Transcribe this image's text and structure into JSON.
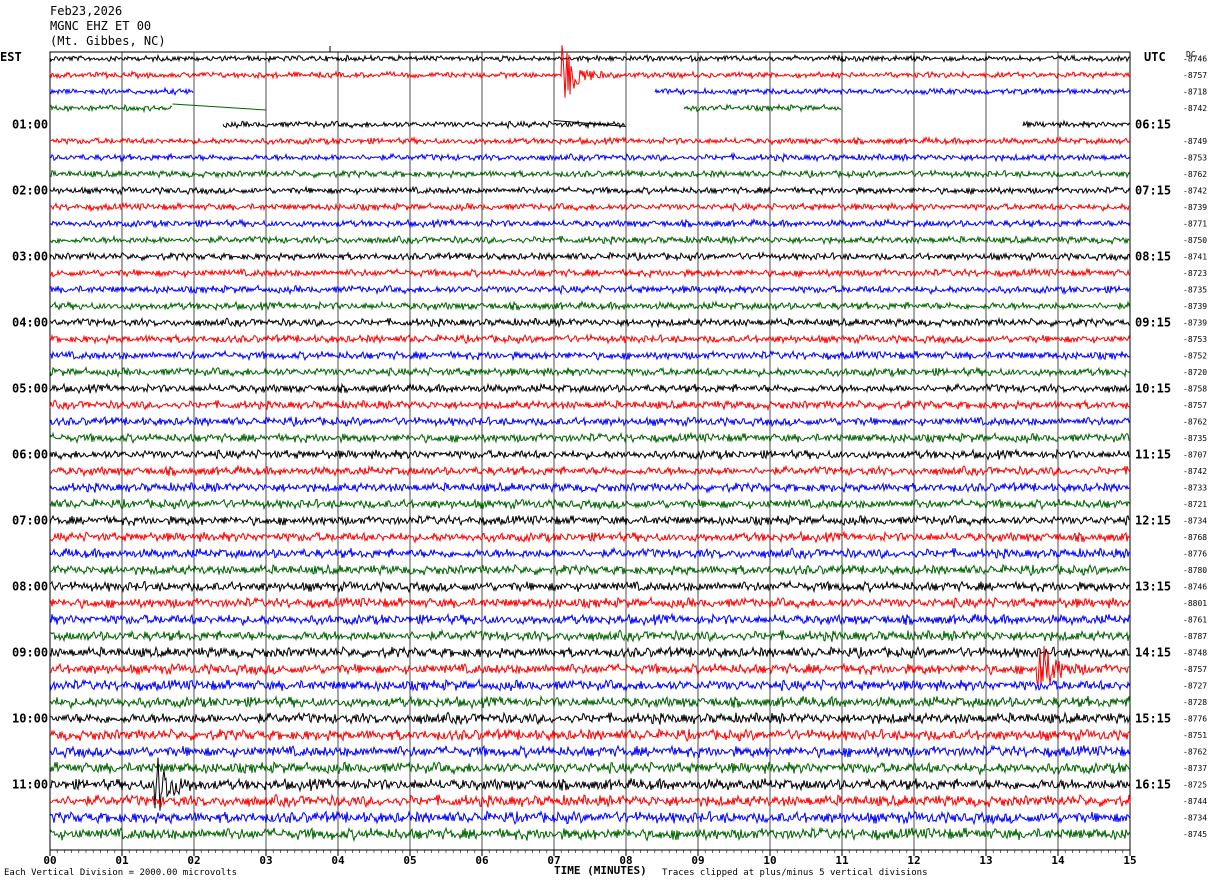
{
  "header": {
    "date": "Feb23,2026",
    "station": "MGNC EHZ ET 00",
    "location": "(Mt. Gibbes, NC)"
  },
  "corner_labels": {
    "left": "EST",
    "right": "UTC",
    "dc": "DC"
  },
  "footer": {
    "left": "Each Vertical Division = 2000.00 microvolts",
    "center": "TIME (MINUTES)",
    "right": "Traces clipped at plus/minus 5 vertical divisions"
  },
  "chart_data": {
    "type": "line",
    "title": "",
    "xlabel": "TIME (MINUTES)",
    "ylabel": "",
    "xlim": [
      0,
      15
    ],
    "x_ticks": [
      "00",
      "01",
      "02",
      "03",
      "04",
      "05",
      "06",
      "07",
      "08",
      "09",
      "10",
      "11",
      "12",
      "13",
      "14",
      "15"
    ],
    "trace_colors": [
      "#000000",
      "#ff0000",
      "#0000ff",
      "#006400"
    ],
    "trace_count": 48,
    "est_hour_labels": [
      "01:00",
      "02:00",
      "03:00",
      "04:00",
      "05:00",
      "06:00",
      "07:00",
      "08:00",
      "09:00",
      "10:00",
      "11:00"
    ],
    "utc_hour_labels": [
      "06:15",
      "07:15",
      "08:15",
      "09:15",
      "10:15",
      "11:15",
      "12:15",
      "13:15",
      "14:15",
      "15:15",
      "16:15"
    ],
    "dc_offsets": [
      "-8746",
      "-8757",
      "-8718",
      "-8742",
      "",
      "-8749",
      "-8753",
      "-8762",
      "-8742",
      "-8739",
      "-8771",
      "-8750",
      "-8741",
      "-8723",
      "-8735",
      "-8739",
      "-8739",
      "-8753",
      "-8752",
      "-8720",
      "-8758",
      "-8757",
      "-8762",
      "-8735",
      "-8707",
      "-8742",
      "-8733",
      "-8721",
      "-8734",
      "-8768",
      "-8776",
      "-8780",
      "-8746",
      "-8801",
      "-8761",
      "-8787",
      "-8748",
      "-8757",
      "-8727",
      "-8728",
      "-8776",
      "-8751",
      "-8762",
      "-8737",
      "-8725",
      "-8744",
      "-8734",
      "-8745"
    ],
    "data_gaps": [
      {
        "trace": 2,
        "from_min": 2.0,
        "to_min": 8.4
      },
      {
        "trace": 3,
        "from_min": 1.7,
        "to_min": 8.8
      },
      {
        "trace": 3,
        "from_min": 11.0,
        "to_min": 15.0
      },
      {
        "trace": 4,
        "from_min": 0.0,
        "to_min": 2.4
      },
      {
        "trace": 4,
        "from_min": 8.0,
        "to_min": 13.5
      }
    ],
    "events": [
      {
        "trace": 1,
        "minute": 7.15,
        "description": "large local event"
      },
      {
        "trace": 44,
        "minute": 1.5,
        "description": "event"
      },
      {
        "trace": 37,
        "minute": 13.75,
        "description": "spike"
      }
    ]
  }
}
